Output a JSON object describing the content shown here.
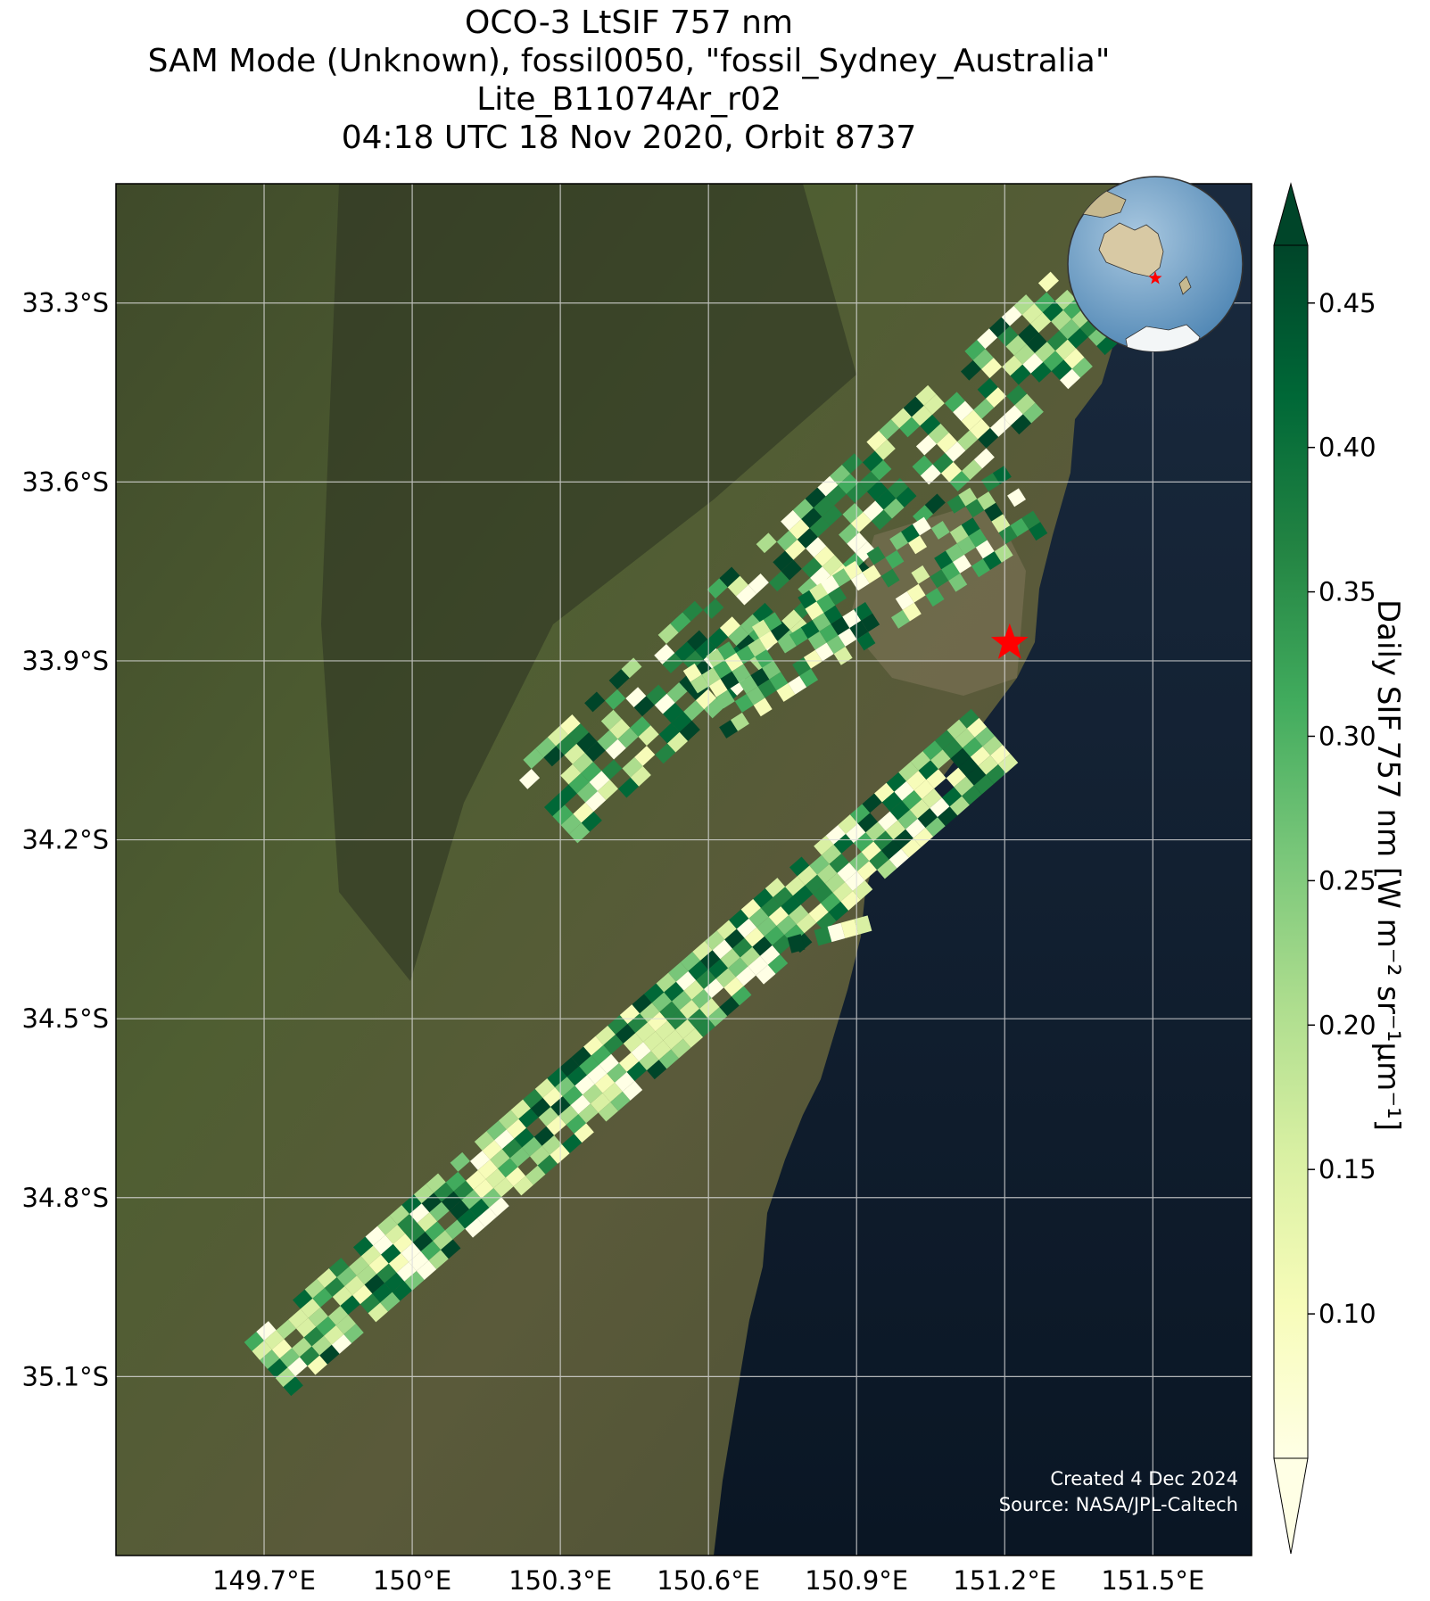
{
  "title": {
    "line1": "OCO-3 LtSIF 757 nm",
    "line2": "SAM Mode (Unknown), fossil0050, \"fossil_Sydney_Australia\"",
    "line3": "Lite_B11074Ar_r02",
    "line4": "04:18 UTC 18 Nov 2020, Orbit 8737"
  },
  "axes": {
    "lat_ticks": [
      "33.3°S",
      "33.6°S",
      "33.9°S",
      "34.2°S",
      "34.5°S",
      "34.8°S",
      "35.1°S"
    ],
    "lon_ticks": [
      "149.7°E",
      "150°E",
      "150.3°E",
      "150.6°E",
      "150.9°E",
      "151.2°E",
      "151.5°E"
    ],
    "lat_values": [
      -33.3,
      -33.6,
      -33.9,
      -34.2,
      -34.5,
      -34.8,
      -35.1
    ],
    "lon_values": [
      149.7,
      150.0,
      150.3,
      150.6,
      150.9,
      151.2,
      151.5
    ],
    "lon_range": [
      149.4,
      151.7
    ],
    "lat_range": [
      -35.4,
      -33.1
    ]
  },
  "colorbar": {
    "label": "Daily SIF 757 nm [W m⁻² sr⁻¹μm⁻¹]",
    "ticks": [
      "0.10",
      "0.15",
      "0.20",
      "0.25",
      "0.30",
      "0.35",
      "0.40",
      "0.45"
    ],
    "tick_values": [
      0.1,
      0.15,
      0.2,
      0.25,
      0.3,
      0.35,
      0.4,
      0.45
    ],
    "range": [
      0.05,
      0.47
    ],
    "colors": [
      "#ffffe5",
      "#f7fcb9",
      "#d9f0a3",
      "#addd8e",
      "#78c679",
      "#41ab5d",
      "#238443",
      "#006837",
      "#004529"
    ]
  },
  "target": {
    "name": "fossil_Sydney_Australia",
    "lon": 151.21,
    "lat": -33.87,
    "color": "#ff0000"
  },
  "credits": {
    "created": "Created 4 Dec 2024",
    "source": "Source: NASA/JPL-Caltech"
  },
  "inset": {
    "description": "globe-icon"
  },
  "colors": {
    "ocean": "#0d1b2e",
    "land": "#4a5a30",
    "grid": "#d8d8d8"
  }
}
